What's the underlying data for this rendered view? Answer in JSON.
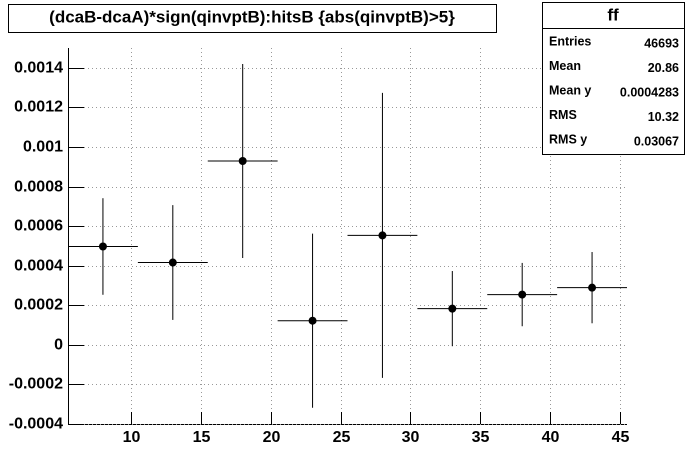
{
  "chart_data": {
    "type": "profile",
    "title": "(dcaB-dcaA)*sign(qinvptB):hitsB {abs(qinvptB)>5}",
    "x": [
      8,
      13,
      18,
      23,
      28,
      33,
      38,
      43
    ],
    "values": [
      0.000497,
      0.000416,
      0.000929,
      0.000122,
      0.000553,
      0.000183,
      0.000254,
      0.000289
    ],
    "errors": [
      0.000244,
      0.00029,
      0.00049,
      0.00044,
      0.00072,
      0.00019,
      0.00016,
      0.00018
    ],
    "color": "#000000",
    "xlim": [
      5.5,
      45.5
    ],
    "xticks": [
      10,
      15,
      20,
      25,
      30,
      35,
      40,
      45
    ],
    "ylim": [
      -0.0004,
      0.0015
    ],
    "yticks": [
      -0.0004,
      -0.0002,
      0,
      0.0002,
      0.0004,
      0.0006,
      0.0008,
      0.001,
      0.0012,
      0.0014
    ],
    "grid": true,
    "stats": {
      "title": "ff",
      "rows": [
        {
          "label": "Entries",
          "value": 46693
        },
        {
          "label": "Mean",
          "value": 20.86
        },
        {
          "label": "Mean y",
          "value": 0.0004283
        },
        {
          "label": "RMS",
          "value": 10.32
        },
        {
          "label": "RMS y",
          "value": 0.03067
        }
      ]
    }
  }
}
